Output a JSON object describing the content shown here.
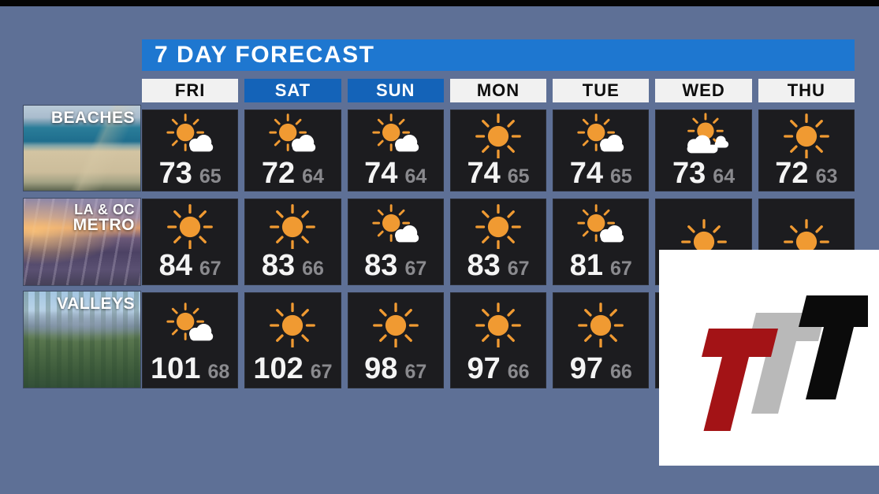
{
  "screen": {
    "title_bar": "7 DAY FORECAST"
  },
  "days": [
    {
      "label": "FRI",
      "highlight": false
    },
    {
      "label": "SAT",
      "highlight": true
    },
    {
      "label": "SUN",
      "highlight": true
    },
    {
      "label": "MON",
      "highlight": false
    },
    {
      "label": "TUE",
      "highlight": false
    },
    {
      "label": "WED",
      "highlight": false
    },
    {
      "label": "THU",
      "highlight": false
    }
  ],
  "regions": [
    {
      "name": "BEACHES",
      "label_lines": [
        "BEACHES"
      ],
      "photo": "beach",
      "forecast": [
        {
          "icon": "mostly-sunny",
          "high": "73",
          "low": "65"
        },
        {
          "icon": "mostly-sunny",
          "high": "72",
          "low": "64"
        },
        {
          "icon": "mostly-sunny",
          "high": "74",
          "low": "64"
        },
        {
          "icon": "sunny",
          "high": "74",
          "low": "65"
        },
        {
          "icon": "mostly-sunny",
          "high": "74",
          "low": "65"
        },
        {
          "icon": "partly-cloudy",
          "high": "73",
          "low": "64"
        },
        {
          "icon": "sunny",
          "high": "72",
          "low": "63"
        }
      ]
    },
    {
      "name": "LA & OC METRO",
      "label_lines": [
        "LA & OC",
        "METRO"
      ],
      "photo": "metro",
      "forecast": [
        {
          "icon": "sunny",
          "high": "84",
          "low": "67"
        },
        {
          "icon": "sunny",
          "high": "83",
          "low": "66"
        },
        {
          "icon": "mostly-sunny",
          "high": "83",
          "low": "67"
        },
        {
          "icon": "sunny",
          "high": "83",
          "low": "67"
        },
        {
          "icon": "mostly-sunny",
          "high": "81",
          "low": "67"
        },
        {
          "icon": "sunny",
          "high": "",
          "low": ""
        },
        {
          "icon": "sunny",
          "high": "",
          "low": ""
        }
      ]
    },
    {
      "name": "VALLEYS",
      "label_lines": [
        "VALLEYS"
      ],
      "photo": "valley",
      "forecast": [
        {
          "icon": "mostly-sunny",
          "high": "101",
          "low": "68"
        },
        {
          "icon": "sunny",
          "high": "102",
          "low": "67"
        },
        {
          "icon": "sunny",
          "high": "98",
          "low": "67"
        },
        {
          "icon": "sunny",
          "high": "97",
          "low": "66"
        },
        {
          "icon": "sunny",
          "high": "97",
          "low": "66"
        },
        {
          "icon": null,
          "high": "",
          "low": ""
        },
        {
          "icon": null,
          "high": "",
          "low": ""
        }
      ]
    }
  ],
  "logo": {
    "letter": "T",
    "letters": [
      "T",
      "T",
      "T"
    ],
    "colors": {
      "left": "#a31316",
      "middle": "#b9b9b9",
      "right": "#0b0b0b"
    }
  },
  "colors": {
    "title_bar_blue": "#1e77d0",
    "weekend_header_blue": "#1463b8",
    "weekday_header_bg": "#f1f1f1",
    "cell_bg": "#1c1c1f",
    "high_temp": "#f4f4f4",
    "low_temp": "#8a8a8e",
    "sun": "#f09a32",
    "cloud": "#ffffff"
  }
}
